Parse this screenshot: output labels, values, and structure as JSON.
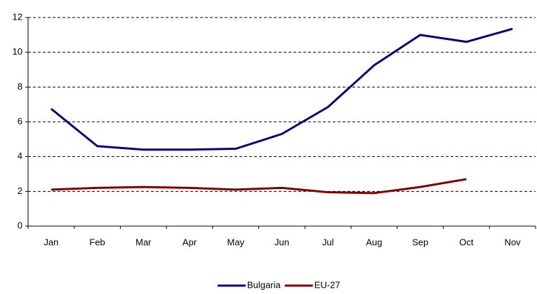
{
  "chart_data": {
    "type": "line",
    "categories": [
      "Jan",
      "Feb",
      "Mar",
      "Apr",
      "May",
      "Jun",
      "Jul",
      "Aug",
      "Sep",
      "Oct",
      "Nov"
    ],
    "series": [
      {
        "name": "Bulgaria",
        "color": "#000080",
        "values": [
          6.75,
          4.6,
          4.4,
          4.4,
          4.45,
          5.3,
          6.85,
          9.25,
          11.0,
          10.6,
          11.35
        ]
      },
      {
        "name": "EU-27",
        "color": "#800000",
        "values": [
          2.1,
          2.2,
          2.25,
          2.2,
          2.1,
          2.2,
          1.95,
          1.9,
          2.25,
          2.7,
          null
        ]
      }
    ],
    "ylim": [
      0,
      12
    ],
    "yticks": [
      0,
      2,
      4,
      6,
      8,
      10,
      12
    ],
    "grid": true,
    "legend": "bottom"
  }
}
